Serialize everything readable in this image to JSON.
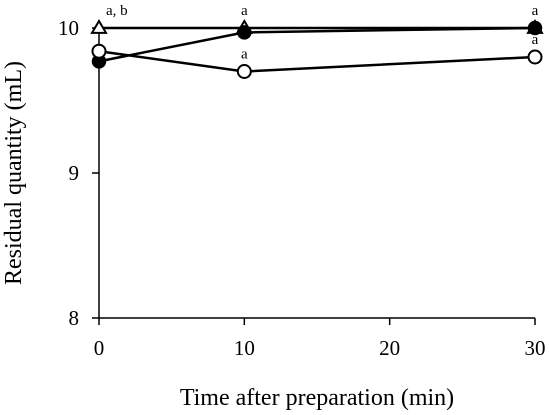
{
  "chart_data": {
    "type": "line",
    "xlabel": "Time after preparation (min)",
    "ylabel": "Residual quantity (mL)",
    "xlim": [
      0,
      30
    ],
    "ylim": [
      8,
      10
    ],
    "xticks": [
      0,
      10,
      20,
      30
    ],
    "yticks": [
      8,
      9,
      10
    ],
    "grid": false,
    "legend": "none",
    "series": [
      {
        "marker": "open-triangle",
        "x": [
          0,
          10,
          30
        ],
        "y": [
          10.0,
          10.0,
          10.0
        ],
        "err": [
          0.02,
          0.01,
          0.01
        ]
      },
      {
        "marker": "filled-circle",
        "x": [
          0,
          10,
          30
        ],
        "y": [
          9.77,
          9.97,
          10.0
        ],
        "err": [
          0.05,
          0.03,
          0.01
        ]
      },
      {
        "marker": "open-circle",
        "x": [
          0,
          10,
          30
        ],
        "y": [
          9.84,
          9.7,
          9.8
        ],
        "err": [
          0.02,
          0.01,
          0.01
        ]
      }
    ],
    "annotations": [
      {
        "text": "a, b",
        "x": 0,
        "y": 10.0
      },
      {
        "text": "a",
        "x": 10,
        "y": 10.0
      },
      {
        "text": "a",
        "x": 10,
        "y": 9.7
      },
      {
        "text": "a",
        "x": 30,
        "y": 10.0
      },
      {
        "text": "a",
        "x": 30,
        "y": 9.8
      }
    ]
  }
}
